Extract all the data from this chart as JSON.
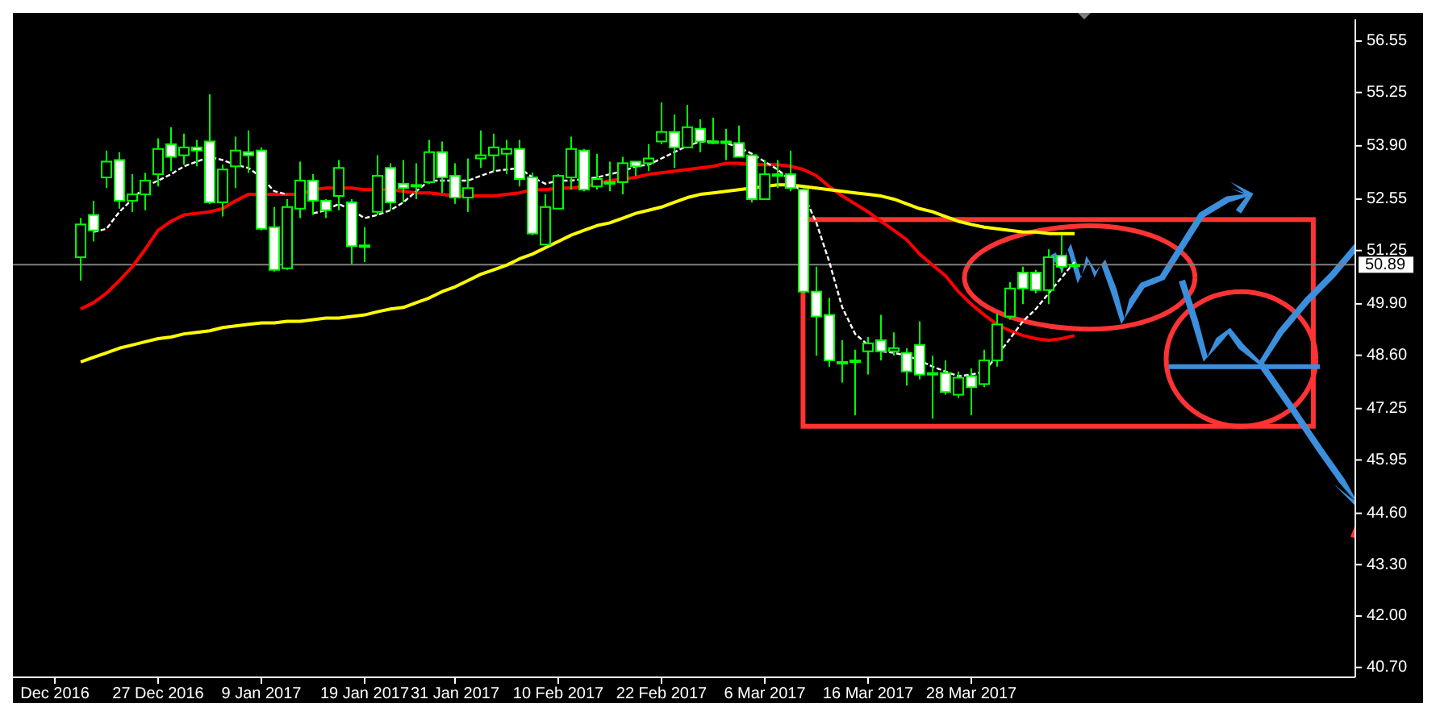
{
  "chart_data": {
    "type": "candlestick",
    "categories": [
      "Dec 2016",
      null,
      null,
      null,
      null,
      null,
      null,
      null,
      "27 Dec 2016",
      null,
      null,
      null,
      null,
      null,
      null,
      null,
      "9 Jan 2017",
      null,
      null,
      null,
      null,
      null,
      null,
      null,
      "19 Jan 2017",
      null,
      null,
      null,
      null,
      null,
      null,
      "31 Jan 2017",
      null,
      null,
      null,
      null,
      null,
      null,
      null,
      "10 Feb 2017",
      null,
      null,
      null,
      null,
      null,
      null,
      null,
      "22 Feb 2017",
      null,
      null,
      null,
      null,
      null,
      null,
      null,
      "6 Mar 2017",
      null,
      null,
      null,
      null,
      null,
      null,
      null,
      "16 Mar 2017",
      null,
      null,
      null,
      null,
      null,
      null,
      null,
      "28 Mar 2017",
      null,
      null,
      null,
      null,
      null,
      null,
      null,
      null
    ],
    "ohlc": [
      null,
      null,
      [
        51.08,
        52.07,
        50.49,
        51.91
      ],
      [
        52.15,
        52.51,
        51.48,
        51.76
      ],
      [
        53.1,
        53.78,
        52.83,
        53.5
      ],
      [
        53.54,
        53.74,
        52.31,
        52.51
      ],
      [
        52.51,
        53.18,
        52.23,
        52.67
      ],
      [
        52.67,
        53.22,
        52.27,
        53.02
      ],
      [
        53.18,
        54.09,
        52.87,
        53.82
      ],
      [
        53.94,
        54.37,
        53.26,
        53.62
      ],
      [
        53.66,
        54.21,
        53.42,
        53.86
      ],
      [
        53.86,
        54.05,
        53.38,
        53.78
      ],
      [
        54.01,
        55.2,
        52.43,
        52.47
      ],
      [
        52.47,
        53.42,
        52.11,
        53.3
      ],
      [
        53.38,
        54.13,
        52.83,
        53.78
      ],
      [
        53.74,
        54.29,
        53.22,
        53.66
      ],
      [
        53.78,
        53.86,
        51.76,
        51.8
      ],
      [
        51.84,
        52.35,
        50.72,
        50.76
      ],
      [
        50.8,
        52.55,
        50.76,
        52.35
      ],
      [
        52.31,
        53.5,
        52.07,
        53.02
      ],
      [
        53.02,
        53.18,
        52.15,
        52.51
      ],
      [
        52.51,
        52.55,
        52.07,
        52.27
      ],
      [
        52.63,
        53.54,
        52.27,
        53.34
      ],
      [
        52.47,
        52.55,
        50.92,
        51.36
      ],
      [
        51.38,
        51.84,
        50.96,
        51.36
      ],
      [
        52.23,
        53.66,
        52.15,
        53.14
      ],
      [
        53.34,
        53.46,
        52.27,
        52.47
      ],
      [
        52.94,
        53.54,
        52.47,
        52.83
      ],
      [
        52.91,
        53.46,
        52.55,
        52.91
      ],
      [
        52.98,
        54.05,
        52.94,
        53.74
      ],
      [
        53.74,
        54.01,
        52.71,
        53.1
      ],
      [
        53.14,
        53.46,
        52.43,
        52.59
      ],
      [
        52.59,
        53.58,
        52.23,
        52.83
      ],
      [
        53.58,
        54.29,
        53.34,
        53.66
      ],
      [
        53.66,
        54.21,
        53.26,
        53.86
      ],
      [
        53.7,
        54.05,
        53.18,
        53.82
      ],
      [
        53.82,
        54.05,
        52.87,
        53.06
      ],
      [
        53.1,
        53.22,
        51.64,
        51.68
      ],
      [
        51.4,
        52.67,
        51.4,
        52.35
      ],
      [
        52.31,
        53.18,
        52.31,
        53.14
      ],
      [
        53.1,
        54.13,
        52.79,
        53.82
      ],
      [
        53.78,
        53.82,
        52.75,
        52.79
      ],
      [
        52.87,
        53.7,
        52.79,
        53.06
      ],
      [
        52.98,
        53.5,
        52.75,
        52.98
      ],
      [
        52.98,
        53.62,
        52.67,
        53.46
      ],
      [
        53.5,
        53.5,
        53.14,
        53.38
      ],
      [
        53.46,
        53.94,
        53.26,
        53.58
      ],
      [
        54.01,
        55.0,
        53.94,
        54.25
      ],
      [
        54.25,
        54.69,
        53.34,
        53.86
      ],
      [
        53.86,
        54.93,
        53.86,
        54.37
      ],
      [
        54.33,
        54.57,
        53.74,
        54.01
      ],
      [
        54.01,
        54.61,
        53.94,
        54.01
      ],
      [
        54.01,
        54.33,
        53.54,
        53.99
      ],
      [
        53.97,
        54.41,
        53.62,
        53.62
      ],
      [
        53.66,
        53.66,
        52.47,
        52.55
      ],
      [
        52.55,
        53.54,
        52.55,
        53.18
      ],
      [
        53.18,
        53.54,
        52.83,
        53.18
      ],
      [
        53.18,
        53.78,
        52.75,
        52.83
      ],
      [
        52.79,
        52.83,
        50.17,
        50.21
      ],
      [
        50.21,
        50.84,
        48.59,
        49.58
      ],
      [
        49.62,
        50.05,
        48.31,
        48.47
      ],
      [
        48.43,
        48.98,
        47.91,
        48.43
      ],
      [
        48.47,
        48.74,
        47.08,
        48.47
      ],
      [
        48.7,
        49.06,
        48.11,
        48.9
      ],
      [
        48.98,
        49.62,
        48.47,
        48.7
      ],
      [
        48.7,
        49.18,
        48.59,
        48.78
      ],
      [
        48.66,
        48.78,
        47.83,
        48.19
      ],
      [
        48.86,
        49.46,
        47.99,
        48.11
      ],
      [
        48.15,
        48.59,
        47.0,
        48.15
      ],
      [
        48.15,
        48.47,
        47.6,
        47.67
      ],
      [
        47.6,
        48.19,
        47.52,
        48.03
      ],
      [
        48.07,
        48.27,
        47.08,
        47.79
      ],
      [
        47.87,
        48.74,
        47.79,
        48.47
      ],
      [
        48.47,
        49.65,
        48.31,
        49.38
      ],
      [
        49.58,
        50.45,
        49.5,
        50.29
      ],
      [
        50.69,
        50.84,
        49.89,
        50.29
      ],
      [
        50.69,
        50.76,
        50.17,
        50.25
      ],
      [
        50.25,
        51.28,
        49.89,
        51.08
      ],
      [
        51.12,
        51.64,
        50.69,
        50.84
      ],
      [
        50.88,
        50.92,
        50.8,
        50.89
      ]
    ],
    "series": [
      {
        "type": "line",
        "color": "#ff0000",
        "line_style": "solid",
        "values": [
          null,
          null,
          49.77,
          49.93,
          50.17,
          50.49,
          50.84,
          51.28,
          51.76,
          51.99,
          52.15,
          52.19,
          52.23,
          52.31,
          52.51,
          52.67,
          52.67,
          52.67,
          52.67,
          52.67,
          52.79,
          52.83,
          52.83,
          52.83,
          52.79,
          52.79,
          52.79,
          52.75,
          52.71,
          52.71,
          52.67,
          52.63,
          52.63,
          52.63,
          52.63,
          52.67,
          52.71,
          52.79,
          52.79,
          52.83,
          52.83,
          52.87,
          52.94,
          53.02,
          53.06,
          53.1,
          53.18,
          53.22,
          53.26,
          53.3,
          53.34,
          53.38,
          53.46,
          53.46,
          53.42,
          53.42,
          53.42,
          53.38,
          53.3,
          53.14,
          52.87,
          52.63,
          52.43,
          52.23,
          51.99,
          51.76,
          51.52,
          51.16,
          50.88,
          50.61,
          50.21,
          49.89,
          49.62,
          49.38,
          49.22,
          49.1,
          49.02,
          48.98,
          49.02,
          49.1
        ]
      },
      {
        "type": "line",
        "color": "#ffff00",
        "line_style": "solid",
        "values": [
          null,
          null,
          48.43,
          48.55,
          48.66,
          48.78,
          48.86,
          48.94,
          49.02,
          49.06,
          49.14,
          49.18,
          49.22,
          49.3,
          49.34,
          49.38,
          49.42,
          49.42,
          49.46,
          49.46,
          49.5,
          49.54,
          49.54,
          49.58,
          49.62,
          49.7,
          49.77,
          49.81,
          49.93,
          50.05,
          50.21,
          50.33,
          50.49,
          50.65,
          50.76,
          50.88,
          51.04,
          51.16,
          51.32,
          51.48,
          51.64,
          51.76,
          51.88,
          51.95,
          52.07,
          52.19,
          52.27,
          52.35,
          52.47,
          52.59,
          52.67,
          52.71,
          52.75,
          52.79,
          52.83,
          52.87,
          52.91,
          52.91,
          52.87,
          52.83,
          52.79,
          52.75,
          52.71,
          52.67,
          52.63,
          52.55,
          52.43,
          52.31,
          52.23,
          52.11,
          51.99,
          51.91,
          51.84,
          51.8,
          51.76,
          51.72,
          51.72,
          51.68,
          51.68,
          51.68
        ]
      },
      {
        "type": "line",
        "color": "#ffffff",
        "line_style": "dotted",
        "values": [
          null,
          null,
          null,
          51.72,
          51.8,
          52.23,
          52.55,
          52.87,
          53.02,
          53.18,
          53.38,
          53.5,
          53.62,
          53.54,
          53.42,
          53.34,
          53.1,
          52.75,
          52.67,
          null,
          52.19,
          52.27,
          52.43,
          52.27,
          52.07,
          52.15,
          52.27,
          52.47,
          52.75,
          53.02,
          53.02,
          53.02,
          53.02,
          53.14,
          53.26,
          53.3,
          53.34,
          53.1,
          52.94,
          53.02,
          53.02,
          53.06,
          53.1,
          53.18,
          53.26,
          53.38,
          53.42,
          53.58,
          53.74,
          53.9,
          54.01,
          54.01,
          53.97,
          53.86,
          53.7,
          53.5,
          53.3,
          53.02,
          52.67,
          51.95,
          50.96,
          49.81,
          49.14,
          48.86,
          48.7,
          48.66,
          48.59,
          48.47,
          48.31,
          48.19,
          48.07,
          48.11,
          48.19,
          48.59,
          49.02,
          49.46,
          49.77,
          50.17,
          50.57,
          50.96
        ]
      }
    ],
    "ylim": [
      40.45,
      57.1
    ],
    "yticks": [
      56.55,
      55.25,
      {
        "value": 53.9,
        "label": "53.90"
      },
      52.55,
      51.25,
      {
        "value": 49.9,
        "label": "49.90"
      },
      {
        "value": 48.6,
        "label": "48.60"
      },
      47.25,
      45.95,
      {
        "value": 44.6,
        "label": "44.60"
      },
      {
        "value": 43.3,
        "label": "43.30"
      },
      {
        "value": 42,
        "label": "42.00"
      },
      {
        "value": 40.7,
        "label": "40.70"
      }
    ],
    "ref_lines": [
      {
        "axis": "y",
        "value": 50.89,
        "label": "50.89",
        "color": "#808080"
      }
    ]
  }
}
